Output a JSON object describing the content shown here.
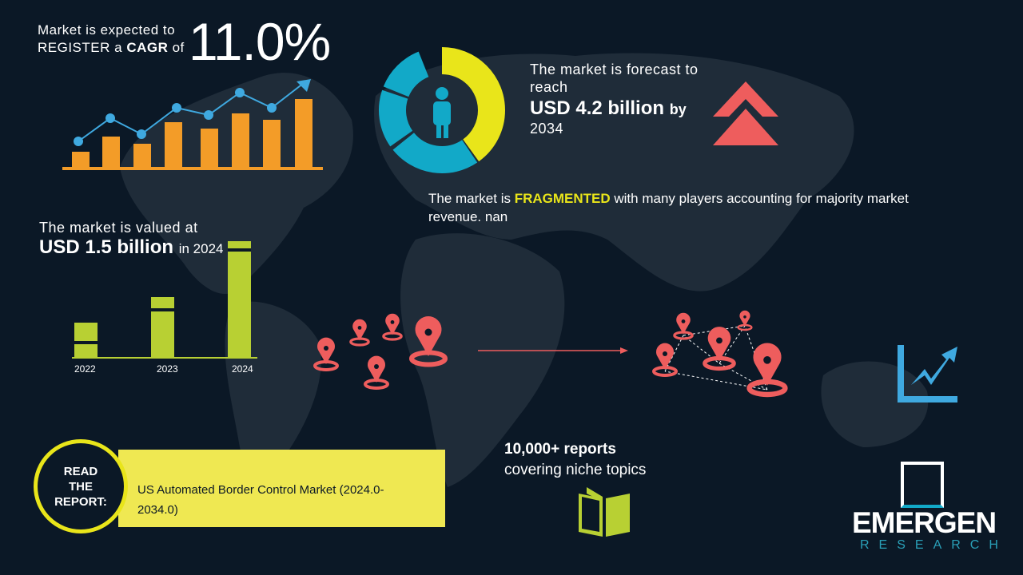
{
  "cagr": {
    "line1": "Market is expected to",
    "line2_pre": "REGISTER a ",
    "line2_bold": "CAGR",
    "line2_post": " of",
    "value": "11.0%"
  },
  "forecast": {
    "line1": "The market is forecast to",
    "line2": "reach",
    "value": "USD 4.2 billion",
    "by": "by",
    "year": "2034",
    "donut_share_pct": 40
  },
  "fragmented": {
    "pre": "The market is ",
    "highlight": "FRAGMENTED",
    "post": " with many players accounting for majority market",
    "line2": "revenue. nan"
  },
  "valued": {
    "line1": "The market is valued at",
    "value": "USD 1.5 billion",
    "post": "in 2024"
  },
  "value_chart": {
    "categories": [
      "2022",
      "2023",
      "2024"
    ]
  },
  "report": {
    "circle": "READ THE REPORT:",
    "title": "US Automated Border Control Market (2024.0-2034.0)"
  },
  "reports": {
    "line1": "10,000+ reports",
    "line2": "covering niche topics"
  },
  "logo": {
    "name": "EMERGEN",
    "sub": "RESEARCH"
  },
  "colors": {
    "bg": "#0b1826",
    "map": "#1f2c39",
    "orange": "#f39c28",
    "blue": "#3fa9e0",
    "yellow": "#e9e51a",
    "lime": "#b8d033",
    "salmon": "#ee5d5d",
    "cyan": "#12a9c8",
    "report_yellow": "#efe852"
  }
}
